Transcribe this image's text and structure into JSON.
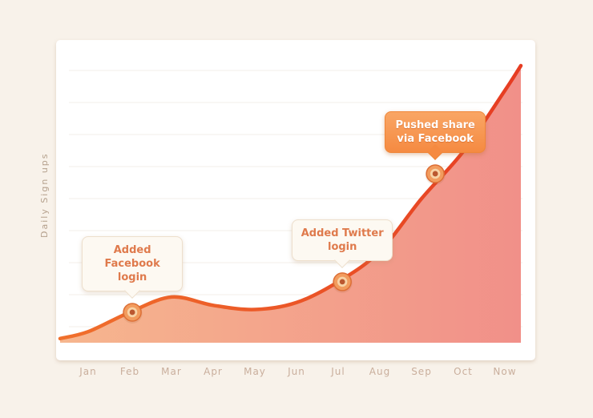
{
  "page": {
    "background_color": "#f8f2ea",
    "card_color": "#ffffff"
  },
  "chart_data": {
    "type": "area",
    "title": "",
    "xlabel": "",
    "ylabel": "Daily Sign ups",
    "categories": [
      "Jan",
      "Feb",
      "Mar",
      "Apr",
      "May",
      "Jun",
      "Jul",
      "Aug",
      "Sep",
      "Oct",
      "Now"
    ],
    "values": [
      4,
      11,
      16.5,
      13.5,
      12,
      14.5,
      22,
      33,
      52,
      69,
      91
    ],
    "start_value": 1.5,
    "end_value": 100,
    "ylim": [
      0,
      100
    ],
    "y_tick_labels_visible": false,
    "grid": "horizontal",
    "legend": "none",
    "line_color_start": "#f0702c",
    "line_color_end": "#e63c22",
    "area_color_start": "#f6b68e",
    "area_color_end": "#f19089",
    "grid_color": "#f3efe9",
    "annotations": [
      {
        "text": "Added Facebook login",
        "month_index": 1.06,
        "value": 11,
        "style": "light"
      },
      {
        "text": "Added Twitter login",
        "month_index": 6.1,
        "value": 22,
        "style": "light"
      },
      {
        "text": "Pushed share via Facebook",
        "month_index": 8.33,
        "value": 61,
        "style": "accent"
      }
    ],
    "marker_colors": {
      "outer": "#f29c5e",
      "outer_ring": "#dd6f36",
      "inner_ring": "#f8d3a6",
      "center": "#bb5830"
    },
    "axis_text_color": "#c9ae9c",
    "ylabel_text_color": "#b5a18d"
  }
}
